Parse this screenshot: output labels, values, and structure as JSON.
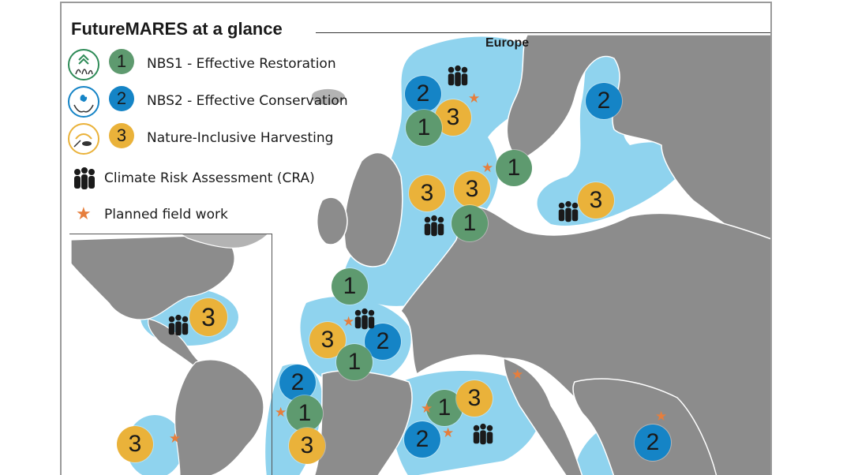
{
  "title": "FutureMARES at a glance",
  "region_label": "Europe",
  "colors": {
    "sea": "#8fd3ee",
    "land": "#8c8c8c",
    "land_light": "#b3b3b3",
    "border": "#ffffff",
    "nbs1": "#5e9a6f",
    "nbs2": "#1584c6",
    "harvest": "#eab23a",
    "star": "#e67e3c",
    "cra": "#1a1a1a"
  },
  "legend": [
    {
      "number": "1",
      "label": "NBS1 - Effective Restoration",
      "type": "nbs1",
      "icon": "restoration-icon"
    },
    {
      "number": "2",
      "label": "NBS2 - Effective Conservation",
      "type": "nbs2",
      "icon": "conservation-icon"
    },
    {
      "number": "3",
      "label": "Nature-Inclusive Harvesting",
      "type": "harvest",
      "icon": "harvesting-icon"
    },
    {
      "number": "",
      "label": "Climate Risk Assessment (CRA)",
      "type": "cra",
      "icon": "people-group-icon"
    },
    {
      "number": "",
      "label": "Planned field work",
      "type": "star",
      "icon": "star-icon"
    }
  ],
  "markers": [
    {
      "region": "norwegian-sea",
      "type": "nbs2",
      "number": "2"
    },
    {
      "region": "norwegian-coast",
      "type": "harvest",
      "number": "3"
    },
    {
      "region": "norwegian-coast",
      "type": "nbs1",
      "number": "1"
    },
    {
      "region": "baltic-north",
      "type": "nbs2",
      "number": "2"
    },
    {
      "region": "skagerrak",
      "type": "nbs1",
      "number": "1"
    },
    {
      "region": "north-sea",
      "type": "harvest",
      "number": "3"
    },
    {
      "region": "north-sea-east",
      "type": "harvest",
      "number": "3"
    },
    {
      "region": "north-sea-south",
      "type": "nbs1",
      "number": "1"
    },
    {
      "region": "baltic-south",
      "type": "harvest",
      "number": "3"
    },
    {
      "region": "celtic-sea",
      "type": "nbs1",
      "number": "1"
    },
    {
      "region": "bay-of-biscay-west",
      "type": "harvest",
      "number": "3"
    },
    {
      "region": "bay-of-biscay-east",
      "type": "nbs2",
      "number": "2"
    },
    {
      "region": "bay-of-biscay-south",
      "type": "nbs1",
      "number": "1"
    },
    {
      "region": "iberia-north",
      "type": "nbs2",
      "number": "2"
    },
    {
      "region": "iberia-west",
      "type": "nbs1",
      "number": "1"
    },
    {
      "region": "iberia-south",
      "type": "harvest",
      "number": "3"
    },
    {
      "region": "western-med",
      "type": "nbs1",
      "number": "1"
    },
    {
      "region": "western-med-east",
      "type": "harvest",
      "number": "3"
    },
    {
      "region": "western-med-south",
      "type": "nbs2",
      "number": "2"
    },
    {
      "region": "aegean",
      "type": "nbs2",
      "number": "2"
    },
    {
      "region": "caribbean",
      "type": "harvest",
      "number": "3"
    },
    {
      "region": "brazil",
      "type": "harvest",
      "number": "3"
    }
  ]
}
